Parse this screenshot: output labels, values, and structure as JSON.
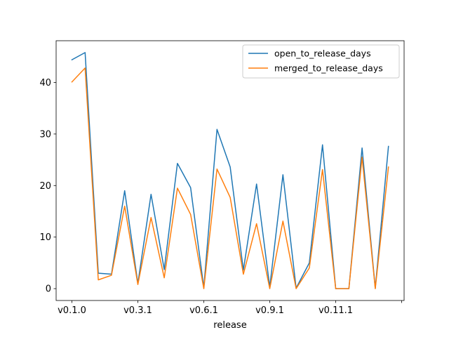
{
  "chart_data": {
    "type": "line",
    "xlabel": "release",
    "ylabel": "",
    "title": "",
    "ylim": [
      -2.3,
      48.1
    ],
    "yticks": [
      0,
      10,
      20,
      30,
      40
    ],
    "xtick_labels": [
      {
        "index": 0,
        "label": "v0.1.0"
      },
      {
        "index": 5,
        "label": "v0.3.1"
      },
      {
        "index": 10,
        "label": "v0.6.1"
      },
      {
        "index": 15,
        "label": "v0.9.1"
      },
      {
        "index": 20,
        "label": "v0.11.1"
      },
      {
        "index": 25,
        "label": ""
      }
    ],
    "x_count": 25,
    "legend_position": "upper right",
    "grid": false,
    "series": [
      {
        "name": "open_to_release_days",
        "color": "#1f77b4",
        "values": [
          44.4,
          45.8,
          3.0,
          2.8,
          19.0,
          1.0,
          18.3,
          3.7,
          24.3,
          19.6,
          0.2,
          30.9,
          23.6,
          3.6,
          20.3,
          0.3,
          22.1,
          0.1,
          5.0,
          27.9,
          0.0,
          0.0,
          27.3,
          0.1,
          27.6
        ]
      },
      {
        "name": "merged_to_release_days",
        "color": "#ff7f0e",
        "values": [
          40.1,
          42.8,
          1.7,
          2.6,
          16.0,
          0.8,
          13.8,
          2.1,
          19.5,
          14.4,
          0.0,
          23.2,
          17.7,
          2.8,
          12.6,
          0.0,
          13.1,
          0.0,
          4.0,
          23.1,
          0.0,
          0.0,
          25.5,
          0.0,
          23.6
        ]
      }
    ]
  }
}
